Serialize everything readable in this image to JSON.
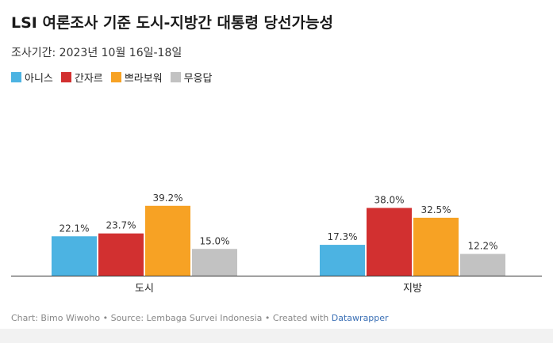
{
  "title": "LSI 여론조사 기준 도시-지방간 대통령 당선가능성",
  "subtitle": "조사기간: 2023년 10월 16일-18일",
  "footer": {
    "text": "Chart: Bimo Wiwoho • Source: Lembaga Survei Indonesia • Created with ",
    "link": "Datawrapper"
  },
  "colors": {
    "series": [
      "#4cb3e2",
      "#d23030",
      "#f7a224",
      "#c2c2c2"
    ],
    "axis": "#333333",
    "label": "#333333"
  },
  "chart_data": {
    "type": "bar",
    "categories": [
      "도시",
      "지방"
    ],
    "series": [
      {
        "name": "아니스",
        "values": [
          22.1,
          17.3
        ]
      },
      {
        "name": "간자르",
        "values": [
          23.7,
          38.0
        ]
      },
      {
        "name": "쁘라보워",
        "values": [
          39.2,
          32.5
        ]
      },
      {
        "name": "무응답",
        "values": [
          15.0,
          12.2
        ]
      }
    ],
    "value_suffix": "%",
    "ylim": [
      0,
      40
    ],
    "grid": false,
    "legend": "top-left"
  }
}
